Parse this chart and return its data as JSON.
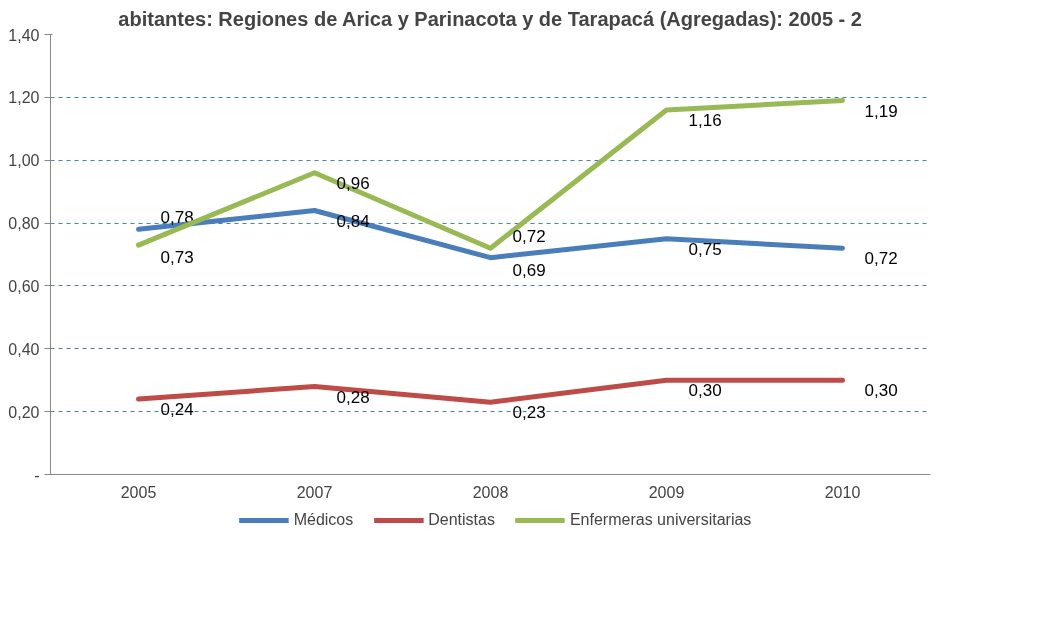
{
  "chart_data": {
    "type": "line",
    "title": "abitantes: Regiones de Arica y Parinacota y de Tarapacá (Agregadas): 2005 - 2",
    "categories": [
      "2005",
      "2007",
      "2008",
      "2009",
      "2010"
    ],
    "series": [
      {
        "name": "Médicos",
        "color": "#4a7ebb",
        "values": [
          0.78,
          0.84,
          0.69,
          0.75,
          0.72
        ],
        "value_labels": [
          "0,78",
          "0,84",
          "0,69",
          "0,75",
          "0,72"
        ]
      },
      {
        "name": "Dentistas",
        "color": "#be4b48",
        "values": [
          0.24,
          0.28,
          0.23,
          0.3,
          0.3
        ],
        "value_labels": [
          "0,24",
          "0,28",
          "0,23",
          "0,30",
          "0,30"
        ]
      },
      {
        "name": "Enfermeras universitarias",
        "color": "#98b954",
        "values": [
          0.73,
          0.96,
          0.72,
          1.16,
          1.19
        ],
        "value_labels": [
          "0,73",
          "0,96",
          "0,72",
          "1,16",
          "1,19"
        ]
      }
    ],
    "ylim": [
      0,
      1.4
    ],
    "yticks": [
      {
        "value": 0,
        "label": "-"
      },
      {
        "value": 0.2,
        "label": "0,20"
      },
      {
        "value": 0.4,
        "label": "0,40"
      },
      {
        "value": 0.6,
        "label": "0,60"
      },
      {
        "value": 0.8,
        "label": "0,80"
      },
      {
        "value": 1.0,
        "label": "1,00"
      },
      {
        "value": 1.2,
        "label": "1,20"
      },
      {
        "value": 1.4,
        "label": "1,40"
      }
    ],
    "grid": "y",
    "legend": "bottom",
    "marker": "none",
    "line_style": "solid"
  }
}
